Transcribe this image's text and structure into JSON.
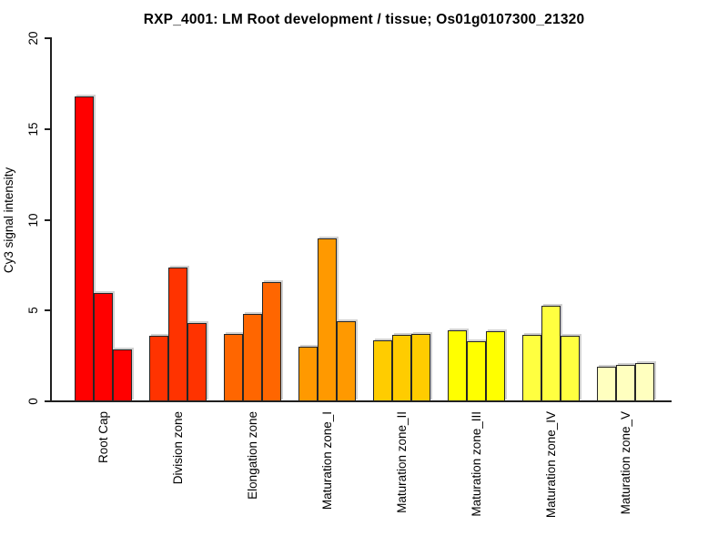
{
  "chart_data": {
    "type": "bar",
    "title": "RXP_4001: LM Root development / tissue; Os01g0107300_21320",
    "ylabel": "Cy3 signal intensity",
    "xlabel": "",
    "ylim": [
      0,
      20
    ],
    "yticks": [
      0,
      5,
      10,
      15,
      20
    ],
    "grid": false,
    "legend_position": "none",
    "bars_per_category": 3,
    "bar_border_color": "#262626",
    "palette_name": "heat-colors-red-to-pale-yellow",
    "categories": [
      "Root Cap",
      "Division zone",
      "Elongation zone",
      "Maturation zone_I",
      "Maturation zone_II",
      "Maturation zone_III",
      "Maturation zone_IV",
      "Maturation zone_V"
    ],
    "groups": [
      {
        "category": "Root Cap",
        "color": "#FF0000",
        "values": [
          16.8,
          5.95,
          2.85
        ]
      },
      {
        "category": "Division zone",
        "color": "#FF3300",
        "values": [
          3.6,
          7.4,
          4.3
        ]
      },
      {
        "category": "Elongation zone",
        "color": "#FF6600",
        "values": [
          3.7,
          4.8,
          6.55
        ]
      },
      {
        "category": "Maturation zone_I",
        "color": "#FF9900",
        "values": [
          3.0,
          9.0,
          4.4
        ]
      },
      {
        "category": "Maturation zone_II",
        "color": "#FFCC00",
        "values": [
          3.35,
          3.65,
          3.7
        ]
      },
      {
        "category": "Maturation zone_III",
        "color": "#FFFF00",
        "values": [
          3.9,
          3.3,
          3.85
        ]
      },
      {
        "category": "Maturation zone_IV",
        "color": "#FFFF40",
        "values": [
          3.65,
          5.25,
          3.6
        ]
      },
      {
        "category": "Maturation zone_V",
        "color": "#FFFFBF",
        "values": [
          1.9,
          2.0,
          2.1
        ]
      }
    ]
  }
}
